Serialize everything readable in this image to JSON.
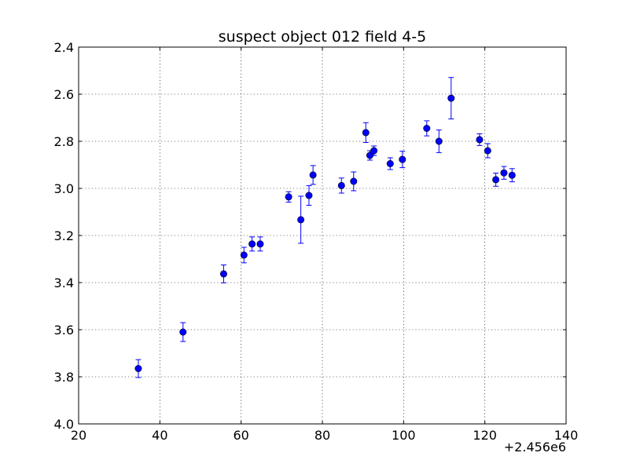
{
  "chart_data": {
    "type": "scatter",
    "title": "suspect object 012 field 4-5",
    "xlabel": "",
    "ylabel": "",
    "x_offset_label": "+2.456e6",
    "xlim": [
      20,
      140
    ],
    "ylim": [
      2.4,
      4.0
    ],
    "y_inverted": true,
    "grid": true,
    "marker_color": "#0000ff",
    "x_ticks": [
      20,
      40,
      60,
      80,
      100,
      120,
      140
    ],
    "x_tick_labels": [
      "20",
      "40",
      "60",
      "80",
      "100",
      "120",
      "140"
    ],
    "y_ticks": [
      2.4,
      2.6,
      2.8,
      3.0,
      3.2,
      3.4,
      3.6,
      3.8,
      4.0
    ],
    "y_tick_labels": [
      "2.4",
      "2.6",
      "2.8",
      "3.0",
      "3.2",
      "3.4",
      "3.6",
      "3.8",
      "4.0"
    ],
    "points": [
      {
        "x": 34.7,
        "y": 3.765,
        "err": 0.038
      },
      {
        "x": 45.7,
        "y": 3.61,
        "err": 0.04
      },
      {
        "x": 55.7,
        "y": 3.363,
        "err": 0.038
      },
      {
        "x": 60.7,
        "y": 3.283,
        "err": 0.033
      },
      {
        "x": 62.7,
        "y": 3.236,
        "err": 0.03
      },
      {
        "x": 64.7,
        "y": 3.236,
        "err": 0.03
      },
      {
        "x": 71.7,
        "y": 3.036,
        "err": 0.022
      },
      {
        "x": 74.7,
        "y": 3.133,
        "err": 0.1
      },
      {
        "x": 76.7,
        "y": 3.03,
        "err": 0.042
      },
      {
        "x": 77.7,
        "y": 2.943,
        "err": 0.04
      },
      {
        "x": 84.7,
        "y": 2.988,
        "err": 0.032
      },
      {
        "x": 87.7,
        "y": 2.97,
        "err": 0.04
      },
      {
        "x": 90.7,
        "y": 2.763,
        "err": 0.042
      },
      {
        "x": 91.7,
        "y": 2.86,
        "err": 0.02
      },
      {
        "x": 92.7,
        "y": 2.84,
        "err": 0.02
      },
      {
        "x": 96.7,
        "y": 2.895,
        "err": 0.025
      },
      {
        "x": 99.7,
        "y": 2.877,
        "err": 0.035
      },
      {
        "x": 105.7,
        "y": 2.745,
        "err": 0.032
      },
      {
        "x": 108.7,
        "y": 2.8,
        "err": 0.048
      },
      {
        "x": 111.7,
        "y": 2.617,
        "err": 0.088
      },
      {
        "x": 118.7,
        "y": 2.793,
        "err": 0.025
      },
      {
        "x": 120.7,
        "y": 2.84,
        "err": 0.03
      },
      {
        "x": 122.7,
        "y": 2.963,
        "err": 0.028
      },
      {
        "x": 124.7,
        "y": 2.934,
        "err": 0.027
      },
      {
        "x": 126.7,
        "y": 2.944,
        "err": 0.028
      }
    ]
  }
}
